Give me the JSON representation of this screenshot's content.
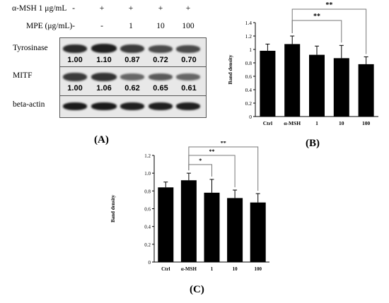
{
  "panel_a": {
    "rows_header": [
      {
        "label": "α-MSH 1 μg/mL",
        "values": [
          "-",
          "+",
          "+",
          "+",
          "+"
        ]
      },
      {
        "label": "MPE (μg/mL)",
        "values": [
          "-",
          "-",
          "1",
          "10",
          "100"
        ]
      }
    ],
    "blots": [
      {
        "label": "Tyrosinase",
        "densities": [
          "1.00",
          "1.10",
          "0.87",
          "0.72",
          "0.70"
        ]
      },
      {
        "label": "MITF",
        "densities": [
          "1.00",
          "1.06",
          "0.62",
          "0.65",
          "0.61"
        ]
      },
      {
        "label": "beta-actin",
        "densities": []
      }
    ],
    "letter": "(A)"
  },
  "panel_b": {
    "letter": "(B)"
  },
  "panel_c": {
    "letter": "(C)"
  },
  "chart_data": [
    {
      "type": "bar",
      "panel": "B",
      "categories": [
        "Ctrl",
        "α-MSH",
        "1",
        "10",
        "100"
      ],
      "values": [
        0.98,
        1.08,
        0.92,
        0.87,
        0.78
      ],
      "errors": [
        0.1,
        0.12,
        0.13,
        0.19,
        0.11
      ],
      "ylabel": "Band density",
      "ylim": [
        0,
        1.4
      ],
      "yticks": [
        "0",
        "0.2",
        "0.4",
        "0.6",
        "0.8",
        "1",
        "1.2",
        "1.4"
      ],
      "significance": [
        {
          "from": "α-MSH",
          "to": "10",
          "label": "**"
        },
        {
          "from": "α-MSH",
          "to": "100",
          "label": "**"
        }
      ],
      "bar_color": "#000000",
      "grid": false
    },
    {
      "type": "bar",
      "panel": "C",
      "categories": [
        "Ctrl",
        "α-MSH",
        "1",
        "10",
        "100"
      ],
      "values": [
        0.84,
        0.92,
        0.78,
        0.72,
        0.67
      ],
      "errors": [
        0.06,
        0.08,
        0.15,
        0.09,
        0.1
      ],
      "ylabel": "Band density",
      "ylim": [
        0,
        1.2
      ],
      "yticks": [
        "0",
        "0.2",
        "0.4",
        "0.6",
        "0.8",
        "1.0",
        "1.2"
      ],
      "significance": [
        {
          "from": "α-MSH",
          "to": "1",
          "label": "*"
        },
        {
          "from": "α-MSH",
          "to": "10",
          "label": "**"
        },
        {
          "from": "α-MSH",
          "to": "100",
          "label": "**"
        }
      ],
      "bar_color": "#000000",
      "grid": false
    }
  ]
}
